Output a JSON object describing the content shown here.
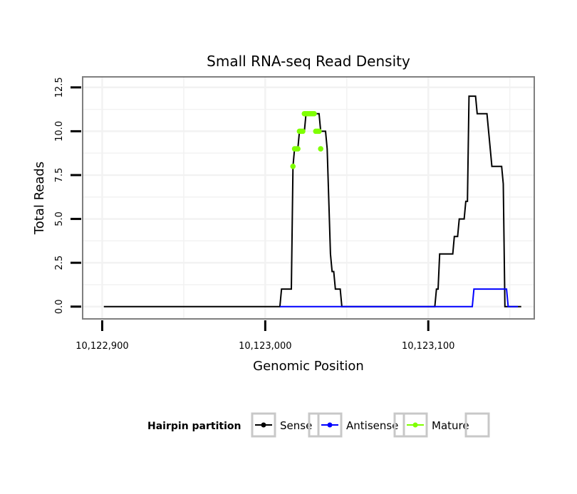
{
  "chart_data": {
    "type": "line",
    "title": "Small RNA-seq Read Density",
    "xlabel": "Genomic Position",
    "ylabel": "Total Reads",
    "xlim": [
      10122888,
      10123165
    ],
    "ylim": [
      -0.7,
      13.1
    ],
    "x_ticks": [
      10122900,
      10123000,
      10123100
    ],
    "x_tick_labels": [
      "10,122,900",
      "10,123,000",
      "10,123,100"
    ],
    "y_ticks": [
      0,
      2.5,
      5,
      7.5,
      10,
      12.5
    ],
    "y_tick_labels": [
      "0.0",
      "2.5",
      "5.0",
      "7.5",
      "10.0",
      "12.5"
    ],
    "grid": true,
    "legend": {
      "title": "Hairpin partition",
      "position": "bottom",
      "entries": [
        "Sense",
        "Antisense",
        "Mature"
      ]
    },
    "series": [
      {
        "name": "Sense",
        "color": "#000000",
        "points": [
          [
            10122901,
            0
          ],
          [
            10123009,
            0
          ],
          [
            10123010,
            1
          ],
          [
            10123016,
            1
          ],
          [
            10123017,
            8
          ],
          [
            10123018,
            9
          ],
          [
            10123020,
            9
          ],
          [
            10123021,
            10
          ],
          [
            10123024,
            10
          ],
          [
            10123025,
            11
          ],
          [
            10123033,
            11
          ],
          [
            10123034,
            10
          ],
          [
            10123037,
            10
          ],
          [
            10123038,
            9
          ],
          [
            10123039,
            6
          ],
          [
            10123040,
            3
          ],
          [
            10123041,
            2
          ],
          [
            10123042,
            2
          ],
          [
            10123043,
            1
          ],
          [
            10123046,
            1
          ],
          [
            10123047,
            0
          ],
          [
            10123104,
            0
          ],
          [
            10123105,
            1
          ],
          [
            10123106,
            1
          ],
          [
            10123107,
            3
          ],
          [
            10123115,
            3
          ],
          [
            10123116,
            4
          ],
          [
            10123118,
            4
          ],
          [
            10123119,
            5
          ],
          [
            10123122,
            5
          ],
          [
            10123123,
            6
          ],
          [
            10123124,
            6
          ],
          [
            10123125,
            12
          ],
          [
            10123129,
            12
          ],
          [
            10123130,
            11
          ],
          [
            10123136,
            11
          ],
          [
            10123137,
            10
          ],
          [
            10123138,
            9
          ],
          [
            10123139,
            8
          ],
          [
            10123145,
            8
          ],
          [
            10123146,
            7
          ],
          [
            10123147,
            0
          ],
          [
            10123157,
            0
          ]
        ]
      },
      {
        "name": "Antisense",
        "color": "#0000ff",
        "points": [
          [
            10123009,
            0
          ],
          [
            10123127,
            0
          ],
          [
            10123128,
            1
          ],
          [
            10123148,
            1
          ],
          [
            10123149,
            0
          ],
          [
            10123155,
            0
          ]
        ]
      },
      {
        "name": "Mature",
        "color": "#7fff00",
        "points": [
          [
            10123017,
            8
          ],
          [
            10123018,
            9
          ],
          [
            10123019,
            9
          ],
          [
            10123020,
            9
          ],
          [
            10123021,
            10
          ],
          [
            10123022,
            10
          ],
          [
            10123023,
            10
          ],
          [
            10123024,
            11
          ],
          [
            10123025,
            11
          ],
          [
            10123026,
            11
          ],
          [
            10123027,
            11
          ],
          [
            10123028,
            11
          ],
          [
            10123029,
            11
          ],
          [
            10123030,
            11
          ],
          [
            10123031,
            10
          ],
          [
            10123032,
            10
          ],
          [
            10123033,
            10
          ],
          [
            10123034,
            9
          ]
        ]
      }
    ]
  }
}
